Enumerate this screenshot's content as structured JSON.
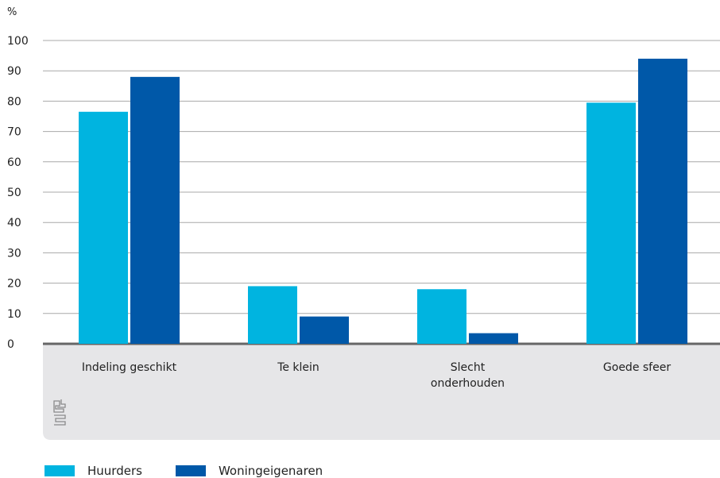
{
  "chart_data": {
    "type": "bar",
    "ylabel": "%",
    "ylim": [
      0,
      100
    ],
    "yticks": [
      0,
      10,
      20,
      30,
      40,
      50,
      60,
      70,
      80,
      90,
      100
    ],
    "categories": [
      "Indeling geschikt",
      "Te klein",
      "Slecht onderhouden",
      "Goede sfeer"
    ],
    "category_lines": [
      [
        "Indeling geschikt"
      ],
      [
        "Te klein"
      ],
      [
        "Slecht",
        "onderhouden"
      ],
      [
        "Goede sfeer"
      ]
    ],
    "series": [
      {
        "name": "Huurders",
        "color": "#00b4e0",
        "values": [
          76.5,
          19,
          18,
          79.5
        ]
      },
      {
        "name": "Woningeigenaren",
        "color": "#0058a8",
        "values": [
          88,
          9,
          3.5,
          94
        ]
      }
    ],
    "grid": true,
    "legend_position": "bottom-left",
    "logo_icon": "cbs-logo-icon"
  }
}
